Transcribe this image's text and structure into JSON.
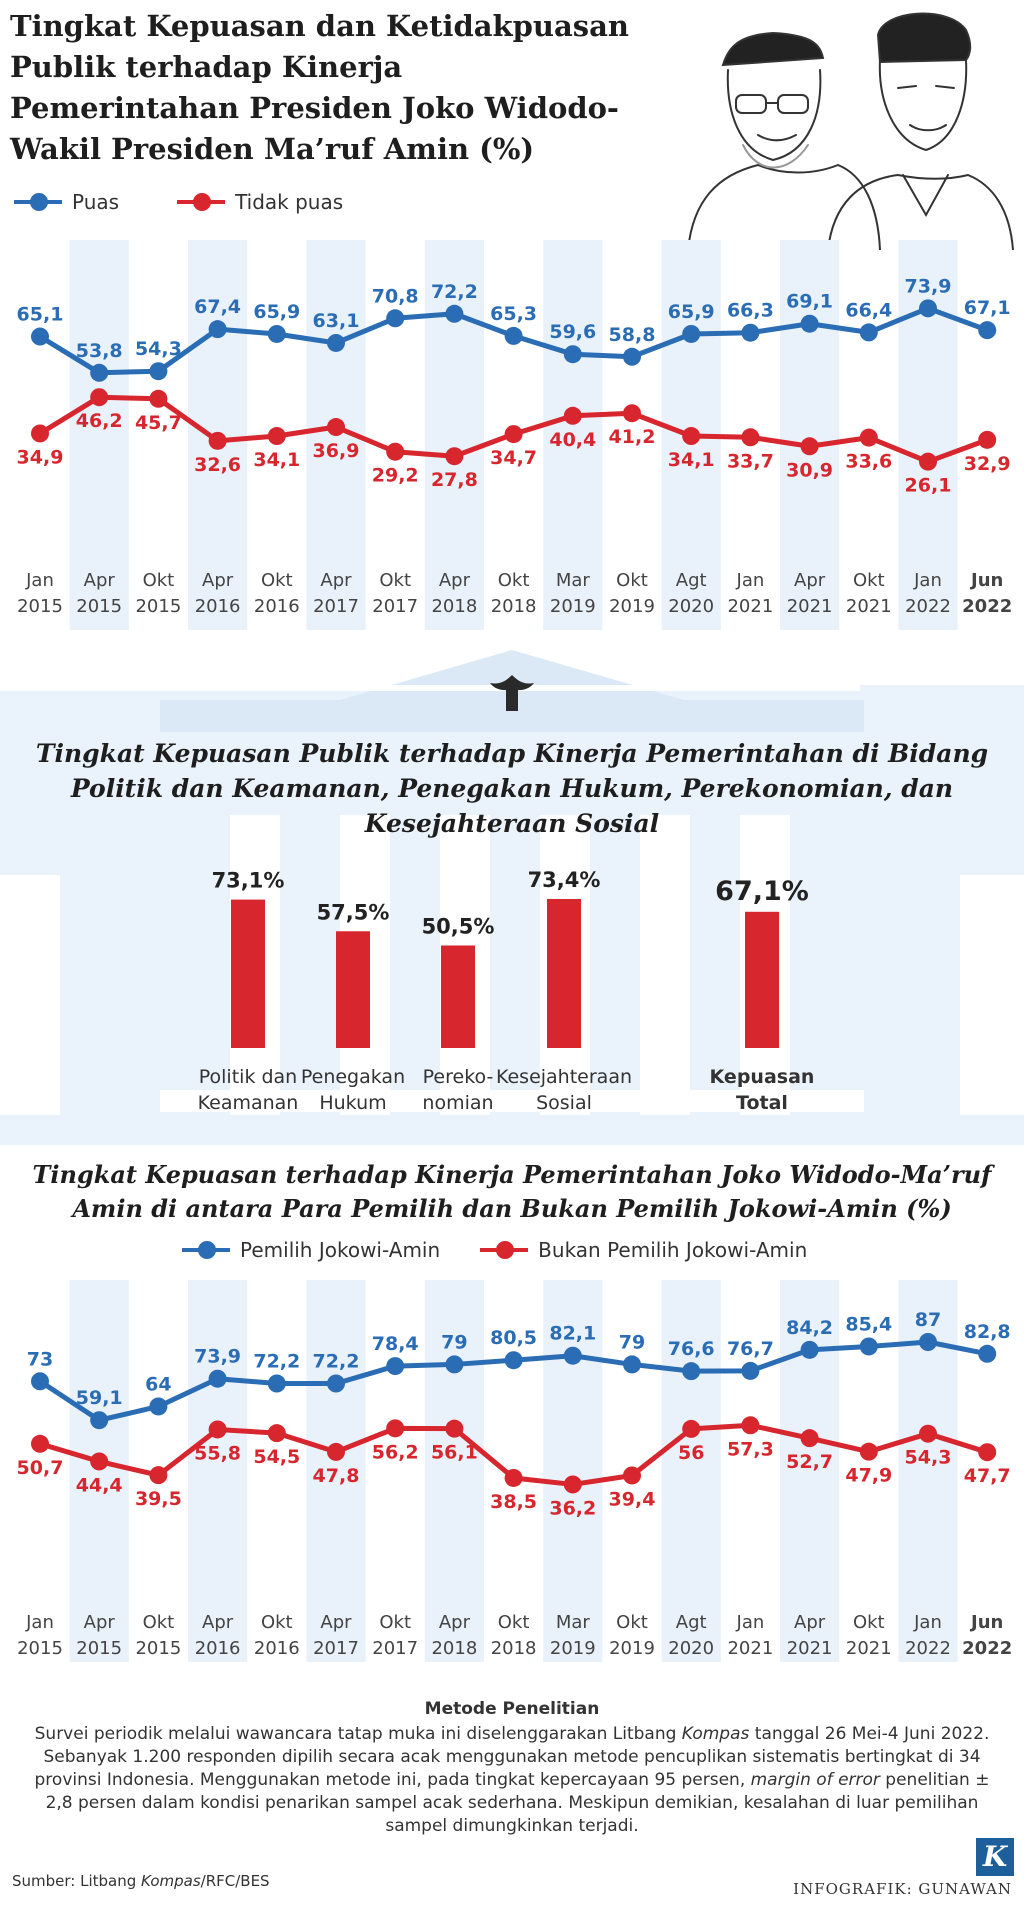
{
  "title": "Tingkat Kepuasan dan Ketidakpuasan Publik terhadap Kinerja Pemerintahan Presiden Joko Widodo-Wakil Presiden Ma’ruf Amin (%)",
  "colors": {
    "blue": "#2a6db5",
    "red": "#d7262d",
    "stripe": "#e9f1fb",
    "palace": "#e4eef9"
  },
  "chart_data": [
    {
      "type": "line",
      "title": "Tingkat Kepuasan dan Ketidakpuasan Publik terhadap Kinerja Pemerintahan Presiden Joko Widodo-Wakil Presiden Ma’ruf Amin (%)",
      "categories": [
        [
          "Jan",
          "2015"
        ],
        [
          "Apr",
          "2015"
        ],
        [
          "Okt",
          "2015"
        ],
        [
          "Apr",
          "2016"
        ],
        [
          "Okt",
          "2016"
        ],
        [
          "Apr",
          "2017"
        ],
        [
          "Okt",
          "2017"
        ],
        [
          "Apr",
          "2018"
        ],
        [
          "Okt",
          "2018"
        ],
        [
          "Mar",
          "2019"
        ],
        [
          "Okt",
          "2019"
        ],
        [
          "Agt",
          "2020"
        ],
        [
          "Jan",
          "2021"
        ],
        [
          "Apr",
          "2021"
        ],
        [
          "Okt",
          "2021"
        ],
        [
          "Jan",
          "2022"
        ],
        [
          "Jun",
          "2022"
        ]
      ],
      "series": [
        {
          "name": "Puas",
          "color": "#2a6db5",
          "values": [
            65.1,
            53.8,
            54.3,
            67.4,
            65.9,
            63.1,
            70.8,
            72.2,
            65.3,
            59.6,
            58.8,
            65.9,
            66.3,
            69.1,
            66.4,
            73.9,
            67.1
          ],
          "labels": [
            "65,1",
            "53,8",
            "54,3",
            "67,4",
            "65,9",
            "63,1",
            "70,8",
            "72,2",
            "65,3",
            "59,6",
            "58,8",
            "65,9",
            "66,3",
            "69,1",
            "66,4",
            "73,9",
            "67,1"
          ]
        },
        {
          "name": "Tidak puas",
          "color": "#d7262d",
          "values": [
            34.9,
            46.2,
            45.7,
            32.6,
            34.1,
            36.9,
            29.2,
            27.8,
            34.7,
            40.4,
            41.2,
            34.1,
            33.7,
            30.9,
            33.6,
            26.1,
            32.9
          ],
          "labels": [
            "34,9",
            "46,2",
            "45,7",
            "32,6",
            "34,1",
            "36,9",
            "29,2",
            "27,8",
            "34,7",
            "40,4",
            "41,2",
            "34,1",
            "33,7",
            "30,9",
            "33,6",
            "26,1",
            "32,9"
          ]
        }
      ],
      "legend": "top-left"
    },
    {
      "type": "bar",
      "title": "Tingkat Kepuasan Publik terhadap Kinerja Pemerintahan di Bidang Politik dan Keamanan, Penegakan Hukum, Perekonomian, dan Kesejahteraan Sosial",
      "categories": [
        [
          "Politik dan",
          "Keamanan"
        ],
        [
          "Penegakan",
          "Hukum"
        ],
        [
          "Pereko-",
          "nomian"
        ],
        [
          "Kesejahteraan",
          "Sosial"
        ],
        [
          "Kepuasan",
          "Total"
        ]
      ],
      "values": [
        73.1,
        57.5,
        50.5,
        73.4,
        67.1
      ],
      "labels": [
        "73,1%",
        "57,5%",
        "50,5%",
        "73,4%",
        "67,1%"
      ],
      "color": "#d7262d"
    },
    {
      "type": "line",
      "title": "Tingkat Kepuasan terhadap Kinerja Pemerintahan Joko Widodo-Ma’ruf Amin di antara Para Pemilih dan Bukan Pemilih Jokowi-Amin (%)",
      "categories": [
        [
          "Jan",
          "2015"
        ],
        [
          "Apr",
          "2015"
        ],
        [
          "Okt",
          "2015"
        ],
        [
          "Apr",
          "2016"
        ],
        [
          "Okt",
          "2016"
        ],
        [
          "Apr",
          "2017"
        ],
        [
          "Okt",
          "2017"
        ],
        [
          "Apr",
          "2018"
        ],
        [
          "Okt",
          "2018"
        ],
        [
          "Mar",
          "2019"
        ],
        [
          "Okt",
          "2019"
        ],
        [
          "Agt",
          "2020"
        ],
        [
          "Jan",
          "2021"
        ],
        [
          "Apr",
          "2021"
        ],
        [
          "Okt",
          "2021"
        ],
        [
          "Jan",
          "2022"
        ],
        [
          "Jun",
          "2022"
        ]
      ],
      "series": [
        {
          "name": "Pemilih Jokowi-Amin",
          "color": "#2a6db5",
          "values": [
            73,
            59.1,
            64,
            73.9,
            72.2,
            72.2,
            78.4,
            79,
            80.5,
            82.1,
            79,
            76.6,
            76.7,
            84.2,
            85.4,
            87,
            82.8
          ],
          "labels": [
            "73",
            "59,1",
            "64",
            "73,9",
            "72,2",
            "72,2",
            "78,4",
            "79",
            "80,5",
            "82,1",
            "79",
            "76,6",
            "76,7",
            "84,2",
            "85,4",
            "87",
            "82,8"
          ]
        },
        {
          "name": "Bukan Pemilih Jokowi-Amin",
          "color": "#d7262d",
          "values": [
            50.7,
            44.4,
            39.5,
            55.8,
            54.5,
            47.8,
            56.2,
            56.1,
            38.5,
            36.2,
            39.4,
            56,
            57.3,
            52.7,
            47.9,
            54.3,
            47.7
          ],
          "labels": [
            "50,7",
            "44,4",
            "39,5",
            "55,8",
            "54,5",
            "47,8",
            "56,2",
            "56,1",
            "38,5",
            "36,2",
            "39,4",
            "56",
            "57,3",
            "52,7",
            "47,9",
            "54,3",
            "47,7"
          ]
        }
      ],
      "legend": "top-center"
    }
  ],
  "legend1": {
    "a": "Puas",
    "b": "Tidak puas"
  },
  "legend3": {
    "a": "Pemilih Jokowi-Amin",
    "b": "Bukan Pemilih Jokowi-Amin"
  },
  "title2": "Tingkat Kepuasan Publik terhadap Kinerja Pemerintahan di Bidang Politik dan Keamanan, Penegakan Hukum, Perekonomian, dan Kesejahteraan Sosial",
  "title3": "Tingkat Kepuasan terhadap Kinerja Pemerintahan Joko Widodo-Ma’ruf Amin di antara Para Pemilih dan Bukan Pemilih Jokowi-Amin (%)",
  "method": {
    "heading": "Metode Penelitian",
    "text_before": "Survei periodik melalui wawancara tatap muka ini diselenggarakan Litbang ",
    "text_kompas": "Kompas",
    "text_mid1": " tanggal 26 Mei-4 Juni 2022. Sebanyak 1.200 responden dipilih secara acak menggunakan metode pencuplikan sistematis bertingkat di 34 provinsi Indonesia. Menggunakan metode ini, pada tingkat kepercayaan 95 persen, ",
    "text_moe": "margin of error",
    "text_after": " penelitian ± 2,8 persen dalam kondisi penarikan sampel acak sederhana. Meskipun demikian, kesalahan di luar pemilihan sampel dimungkinkan terjadi."
  },
  "source": {
    "prefix": "Sumber: Litbang ",
    "kompas": "Kompas",
    "suffix": "/RFC/BES"
  },
  "credit": "INFOGRAFIK: GUNAWAN",
  "logo": "K"
}
